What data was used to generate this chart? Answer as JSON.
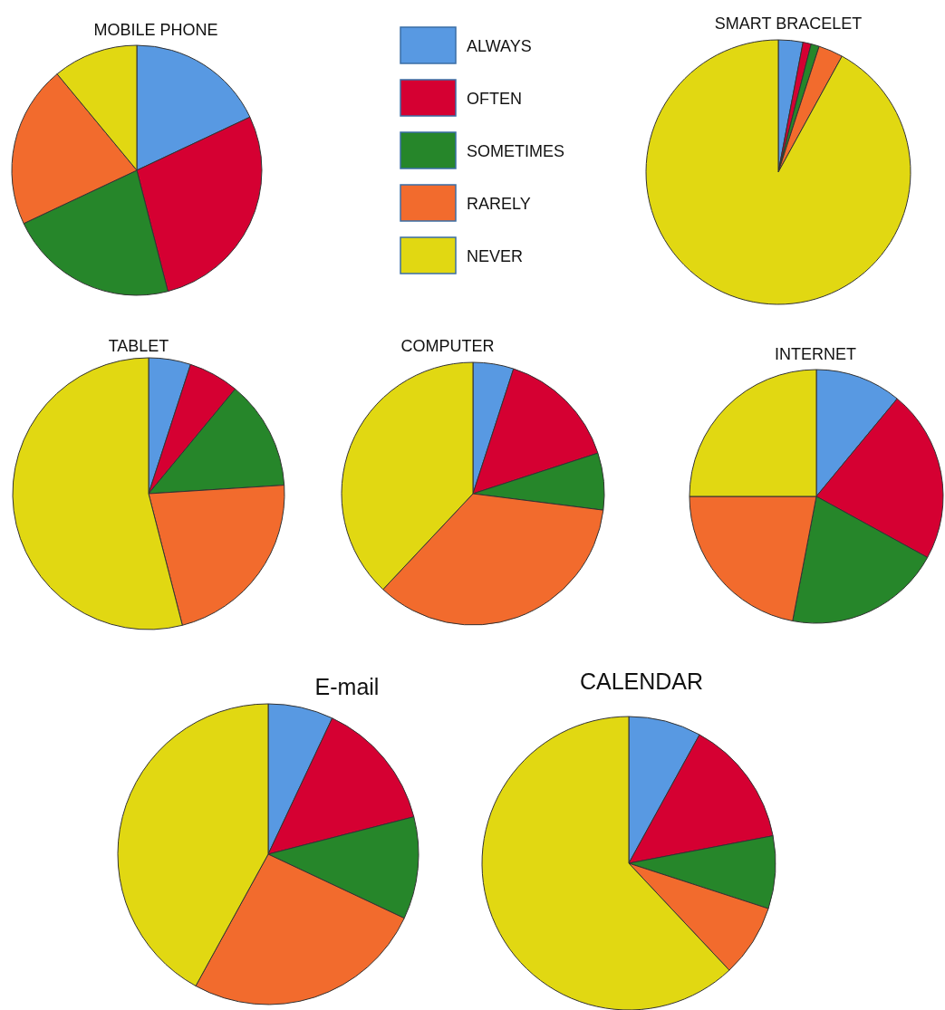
{
  "chart_data": [
    {
      "type": "pie",
      "title": "MOBILE PHONE",
      "categories": [
        "ALWAYS",
        "OFTEN",
        "SOMETIMES",
        "RARELY",
        "NEVER"
      ],
      "values": [
        18,
        28,
        22,
        21,
        11
      ],
      "colors": [
        "#5899e2",
        "#d50032",
        "#26862a",
        "#f26b2d",
        "#e1d812"
      ],
      "legend": "right"
    },
    {
      "type": "pie",
      "title": "SMART BRACELET",
      "values": [
        3,
        1,
        1,
        3,
        92
      ],
      "colors": [
        "#5899e2",
        "#d50032",
        "#26862a",
        "#f26b2d",
        "#e1d812"
      ]
    },
    {
      "type": "pie",
      "title": "TABLET",
      "values": [
        5,
        6,
        13,
        22,
        54
      ],
      "colors": [
        "#5899e2",
        "#d50032",
        "#26862a",
        "#f26b2d",
        "#e1d812"
      ]
    },
    {
      "type": "pie",
      "title": "COMPUTER",
      "values": [
        5,
        15,
        7,
        35,
        38
      ],
      "colors": [
        "#5899e2",
        "#d50032",
        "#26862a",
        "#f26b2d",
        "#e1d812"
      ]
    },
    {
      "type": "pie",
      "title": "INTERNET",
      "values": [
        11,
        22,
        20,
        22,
        25
      ],
      "colors": [
        "#5899e2",
        "#d50032",
        "#26862a",
        "#f26b2d",
        "#e1d812"
      ]
    },
    {
      "type": "pie",
      "title": "E-mail",
      "values": [
        7,
        14,
        11,
        26,
        42
      ],
      "colors": [
        "#5899e2",
        "#d50032",
        "#26862a",
        "#f26b2d",
        "#e1d812"
      ]
    },
    {
      "type": "pie",
      "title": "CALENDAR",
      "values": [
        8,
        14,
        8,
        8,
        62
      ],
      "colors": [
        "#5899e2",
        "#d50032",
        "#26862a",
        "#f26b2d",
        "#e1d812"
      ]
    }
  ]
}
